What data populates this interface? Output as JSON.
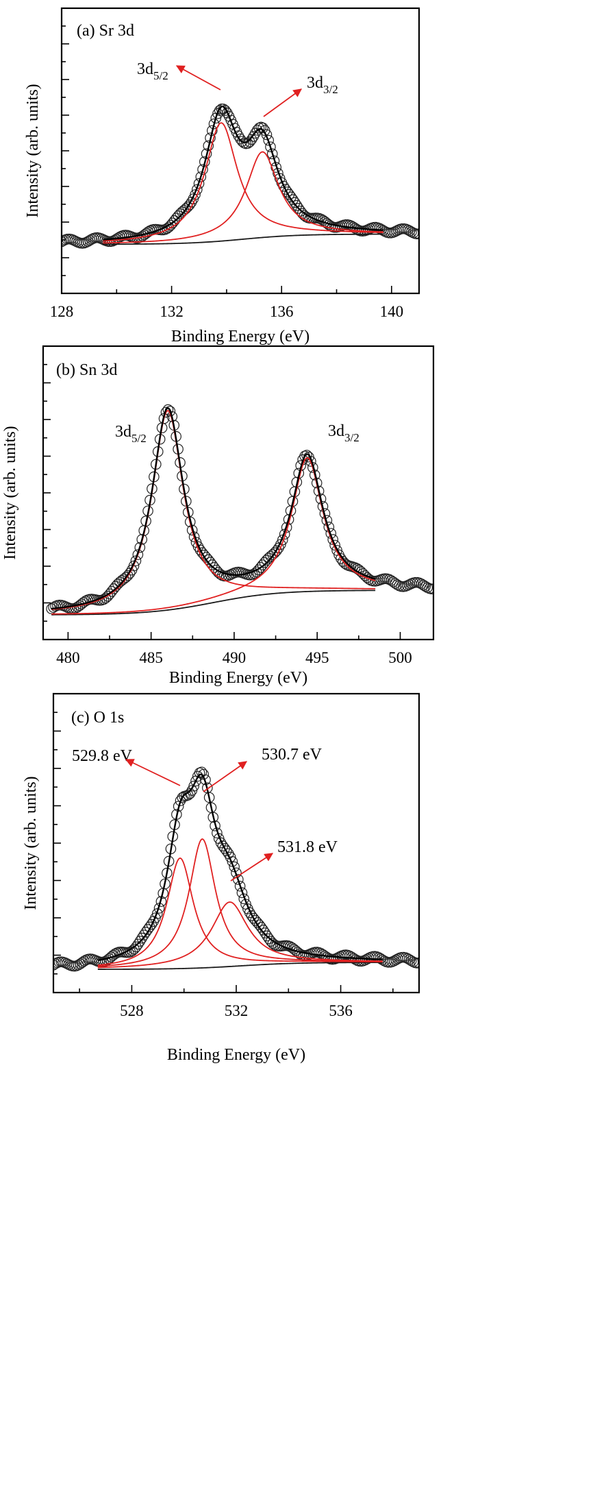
{
  "chart_data": [
    {
      "type": "line",
      "label": "(a) Sr 3d",
      "xlabel": "Binding Energy (eV)",
      "ylabel": "Intensity (arb. units)",
      "xlim": [
        128,
        141
      ],
      "xticks": [
        128,
        132,
        136,
        140
      ],
      "ylim": [
        0,
        1.0
      ],
      "y_tick_labels_shown": false,
      "fit_range": [
        129.5,
        139.7
      ],
      "components": [
        {
          "name": "3d5/2",
          "label_main": "3d",
          "label_sub": "5/2",
          "center": 133.8,
          "height": 0.58,
          "width": 0.72,
          "color": "#e02020"
        },
        {
          "name": "3d3/2",
          "label_main": "3d",
          "label_sub": "3/2",
          "center": 135.3,
          "height": 0.42,
          "width": 0.72,
          "color": "#e02020"
        }
      ],
      "background": {
        "start": 0.01,
        "end": 0.06
      },
      "envelope_color": "#000000",
      "data_marker": "open-circle",
      "data_extends": [
        128,
        141
      ]
    },
    {
      "type": "line",
      "label": "(b) Sn 3d",
      "xlabel": "Binding Energy (eV)",
      "ylabel": "Intensity (arb. units)",
      "xlim": [
        478.5,
        502
      ],
      "xticks": [
        480,
        485,
        490,
        495,
        500
      ],
      "ylim": [
        0,
        1.0
      ],
      "y_tick_labels_shown": false,
      "fit_range": [
        479,
        498.5
      ],
      "components": [
        {
          "name": "3d5/2",
          "label_main": "3d",
          "label_sub": "5/2",
          "center": 486.0,
          "height": 0.85,
          "width": 1.15,
          "color": "#e02020"
        },
        {
          "name": "3d3/2",
          "label_main": "3d",
          "label_sub": "3/2",
          "center": 494.4,
          "height": 0.57,
          "width": 1.15,
          "color": "#e02020"
        }
      ],
      "background": {
        "start": 0.005,
        "end": 0.11
      },
      "envelope_color": "#000000",
      "data_marker": "open-circle",
      "data_extends": [
        479,
        502
      ]
    },
    {
      "type": "line",
      "label": "(c) O 1s",
      "xlabel": "Binding Energy (eV)",
      "ylabel": "Intensity (arb. units)",
      "xlim": [
        525,
        539
      ],
      "xticks": [
        528,
        532,
        536
      ],
      "ylim": [
        0,
        1.0
      ],
      "y_tick_labels_shown": false,
      "fit_range": [
        526.7,
        537.6
      ],
      "components": [
        {
          "name": "529.8 eV",
          "label_main": "529.8 eV",
          "label_sub": "",
          "center": 529.85,
          "height": 0.48,
          "width": 0.62,
          "color": "#e02020"
        },
        {
          "name": "530.7 eV",
          "label_main": "530.7 eV",
          "label_sub": "",
          "center": 530.7,
          "height": 0.56,
          "width": 0.62,
          "color": "#e02020"
        },
        {
          "name": "531.8 eV",
          "label_main": "531.8 eV",
          "label_sub": "",
          "center": 531.75,
          "height": 0.28,
          "width": 0.85,
          "color": "#e02020"
        }
      ],
      "background": {
        "start": 0.01,
        "end": 0.04
      },
      "envelope_color": "#000000",
      "data_marker": "open-circle",
      "data_extends": [
        525,
        539
      ]
    }
  ]
}
